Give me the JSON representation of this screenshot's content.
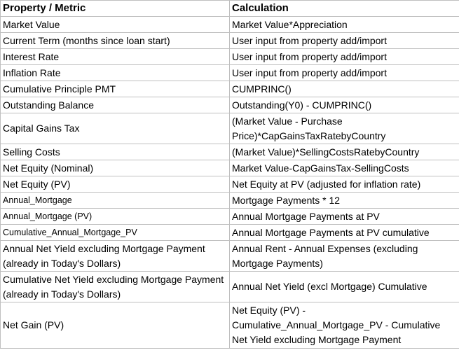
{
  "table": {
    "headers": [
      "Property / Metric",
      "Calculation"
    ],
    "rows": [
      {
        "metric": "Market Value",
        "calc": "Market Value*Appreciation"
      },
      {
        "metric": "Current Term (months since loan start)",
        "calc": "User input from property add/import"
      },
      {
        "metric": "Interest Rate",
        "calc": "User input from property add/import"
      },
      {
        "metric": "Inflation Rate",
        "calc": "User input from property add/import"
      },
      {
        "metric": "Cumulative Principle PMT",
        "calc": "CUMPRINC()"
      },
      {
        "metric": "Outstanding Balance",
        "calc": "Outstanding(Y0) - CUMPRINC()"
      },
      {
        "metric": "Capital Gains Tax",
        "calc": "(Market Value - Purchase Price)*CapGainsTaxRatebyCountry"
      },
      {
        "metric": "Selling Costs",
        "calc": "(Market Value)*SellingCostsRatebyCountry"
      },
      {
        "metric": "Net Equity (Nominal)",
        "calc": "Market Value-CapGainsTax-SellingCosts"
      },
      {
        "metric": "Net Equity (PV)",
        "calc": "Net Equity at PV (adjusted for inflation rate)"
      },
      {
        "metric": "Annual_Mortgage",
        "calc": "Mortgage Payments * 12"
      },
      {
        "metric": "Annual_Mortgage (PV)",
        "calc": "Annual Mortgage Payments at PV"
      },
      {
        "metric": "Cumulative_Annual_Mortgage_PV",
        "calc": "Annual Mortgage Payments at PV cumulative"
      },
      {
        "metric": "Annual Net  Yield excluding Mortgage Payment (already in Today's Dollars)",
        "calc": "Annual Rent - Annual Expenses (excluding Mortgage Payments)"
      },
      {
        "metric": "Cumulative Net Yield excluding Mortgage Payment (already in Today's Dollars)",
        "calc": "Annual Net Yield (excl Mortgage) Cumulative"
      },
      {
        "metric": "Net Gain (PV)",
        "calc": "Net Equity (PV) - Cumulative_Annual_Mortgage_PV - Cumulative Net Yield excluding Mortgage Payment"
      }
    ]
  }
}
